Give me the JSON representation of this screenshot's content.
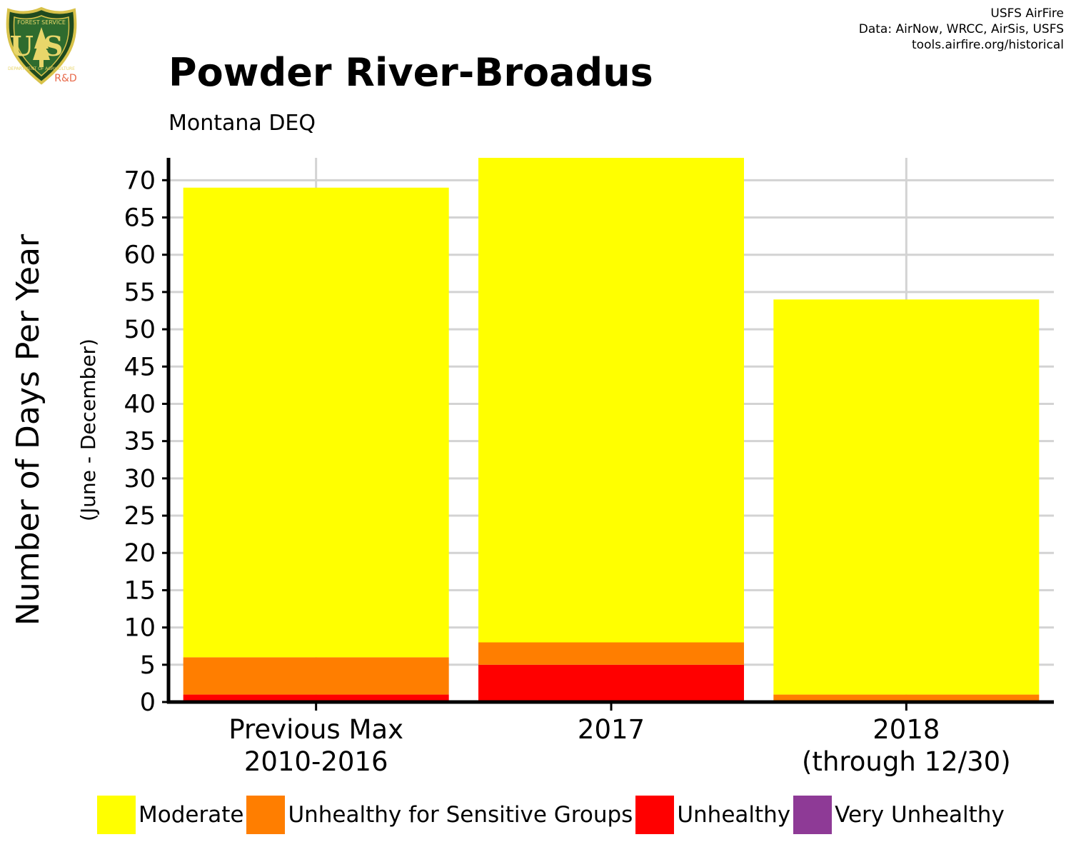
{
  "logo": {
    "icon": "usfs-shield-icon",
    "text": "FOREST SERVICE",
    "initials": "US",
    "bottom_text": "DEPARTMENT OF AGRICULTURE",
    "badge": "R&D"
  },
  "credits": {
    "line1": "USFS AirFire",
    "line2": "Data: AirNow, WRCC, AirSis, USFS",
    "line3": "tools.airfire.org/historical"
  },
  "chart_data": {
    "type": "bar",
    "stacked": true,
    "title": "Powder River-Broadus",
    "subtitle": "Montana DEQ",
    "ylabel": "Number of Days Per Year",
    "ylabel_sub": "(June - December)",
    "xlabel": "",
    "categories": [
      [
        "Previous Max",
        "2010-2016"
      ],
      [
        "2017"
      ],
      [
        "2018",
        "(through 12/30)"
      ]
    ],
    "series": [
      {
        "name": "Very Unhealthy",
        "color": "#8E3A96",
        "values": [
          0,
          0,
          0
        ]
      },
      {
        "name": "Unhealthy",
        "color": "#FF0000",
        "values": [
          1,
          5,
          0
        ]
      },
      {
        "name": "Unhealthy for Sensitive Groups",
        "color": "#FF7E00",
        "values": [
          5,
          3,
          1
        ]
      },
      {
        "name": "Moderate",
        "color": "#FFFF00",
        "values": [
          63,
          65,
          53
        ]
      }
    ],
    "legend_order": [
      "Moderate",
      "Unhealthy for Sensitive Groups",
      "Unhealthy",
      "Very Unhealthy"
    ],
    "ylim": [
      0,
      73
    ],
    "yticks": [
      0,
      5,
      10,
      15,
      20,
      25,
      30,
      35,
      40,
      45,
      50,
      55,
      60,
      65,
      70
    ],
    "grid": true,
    "legend_position": "bottom"
  }
}
